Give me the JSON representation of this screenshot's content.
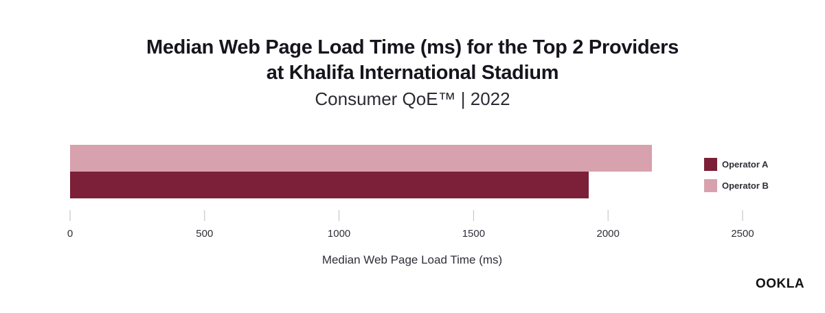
{
  "chart_data": {
    "type": "bar",
    "orientation": "horizontal",
    "title_line1": "Median Web Page Load Time (ms) for the Top 2 Providers",
    "title_line2": "at Khalifa International Stadium",
    "subtitle": "Consumer QoE™ | 2022",
    "xlabel": "Median Web Page Load Time (ms)",
    "xlim": [
      0,
      2500
    ],
    "xticks": [
      "0",
      "500",
      "1000",
      "1500",
      "2000",
      "2500"
    ],
    "xtick_values": [
      0,
      500,
      1000,
      1500,
      2000,
      2500
    ],
    "grid": false,
    "legend_position": "right",
    "series": [
      {
        "name": "Operator A",
        "value": 1928,
        "color": "#7b2038"
      },
      {
        "name": "Operator B",
        "value": 2163,
        "color": "#d8a1ae"
      }
    ]
  },
  "brand": {
    "logo_text": "OOKLA"
  }
}
